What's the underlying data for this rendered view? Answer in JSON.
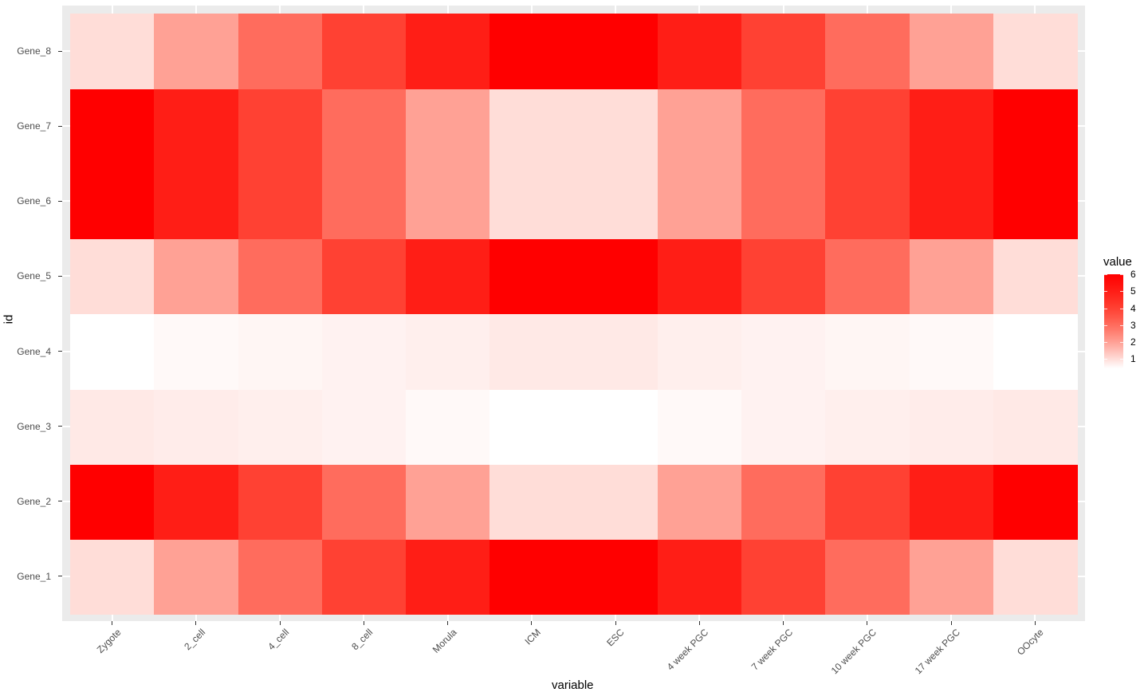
{
  "chart_data": {
    "type": "heatmap",
    "title": "",
    "xlabel": "variable",
    "ylabel": "id",
    "x": [
      "Zygote",
      "2_cell",
      "4_cell",
      "8_cell",
      "Morula",
      "ICM",
      "ESC",
      "4 week PGC",
      "7 week PGC",
      "10 week PGC",
      "17 week PGC",
      "OOcyte"
    ],
    "y": [
      "Gene_1",
      "Gene_2",
      "Gene_3",
      "Gene_4",
      "Gene_5",
      "Gene_6",
      "Gene_7",
      "Gene_8"
    ],
    "values": [
      [
        1,
        2,
        3,
        4,
        5,
        6,
        6,
        5,
        4,
        3,
        2,
        1
      ],
      [
        6,
        5,
        4,
        3,
        2,
        1,
        1,
        2,
        3,
        4,
        5,
        6
      ],
      [
        0.8,
        0.75,
        0.7,
        0.65,
        0.55,
        0.45,
        0.45,
        0.55,
        0.65,
        0.7,
        0.75,
        0.8
      ],
      [
        0.45,
        0.55,
        0.6,
        0.65,
        0.7,
        0.8,
        0.8,
        0.7,
        0.65,
        0.6,
        0.55,
        0.45
      ],
      [
        1,
        2,
        3,
        4,
        5,
        6,
        6,
        5,
        4,
        3,
        2,
        1
      ],
      [
        6,
        5,
        4,
        3,
        2,
        1,
        1,
        2,
        3,
        4,
        5,
        6
      ],
      [
        6,
        5,
        4,
        3,
        2,
        1,
        1,
        2,
        3,
        4,
        5,
        6
      ],
      [
        1,
        2,
        3,
        4,
        5,
        6,
        6,
        5,
        4,
        3,
        2,
        1
      ]
    ],
    "color_scale": {
      "low": "#FFFFFF",
      "high": "#FF0000",
      "min": 0.45,
      "max": 6
    },
    "legend": {
      "title": "value",
      "ticks": [
        1,
        2,
        3,
        4,
        5,
        6
      ],
      "position": "right"
    },
    "grid": true
  },
  "legend": {
    "title": "value",
    "ticks": [
      "6",
      "5",
      "4",
      "3",
      "2",
      "1"
    ]
  },
  "axes": {
    "xlabel": "variable",
    "ylabel": "id"
  }
}
